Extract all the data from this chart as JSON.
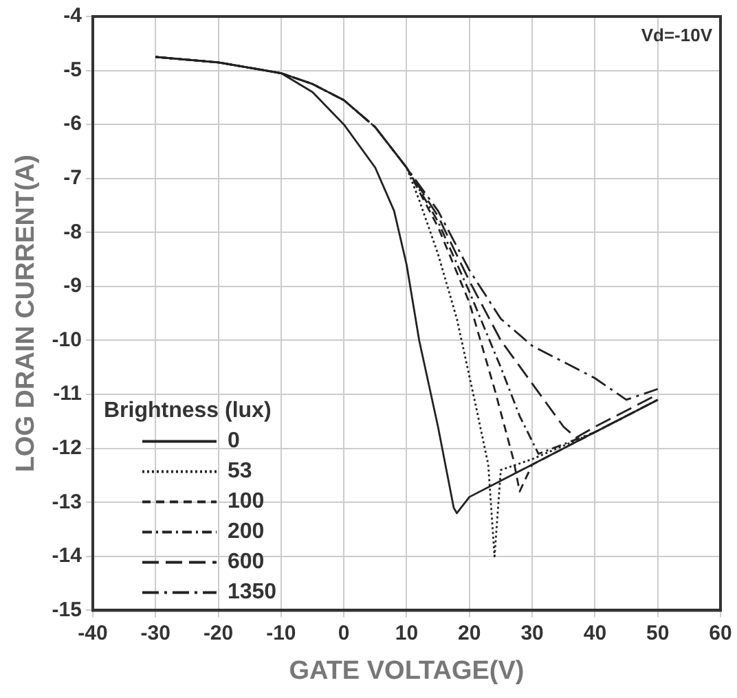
{
  "chart_data": {
    "type": "line",
    "xlabel": "GATE VOLTAGE(V)",
    "ylabel": "LOG DRAIN CURRENT(A)",
    "legend_title": "Brightness (lux)",
    "annotations": [
      "Vd=-10V"
    ],
    "xlim": [
      -40,
      60
    ],
    "xticks": [
      -40,
      -30,
      -20,
      -10,
      0,
      10,
      20,
      30,
      40,
      50,
      60
    ],
    "ylim": [
      -15,
      -4
    ],
    "yticks": [
      -15,
      -14,
      -13,
      -12,
      -11,
      -10,
      -9,
      -8,
      -7,
      -6,
      -5,
      -4
    ],
    "grid": true,
    "legend": "bottom left",
    "marker": "none",
    "series": [
      {
        "name": "0",
        "color": "#222222",
        "line_style": "solid",
        "x": [
          -30,
          -20,
          -10,
          -5,
          0,
          5,
          8,
          10,
          12,
          15,
          17.5,
          18,
          20,
          30,
          40,
          50
        ],
        "values": [
          -4.75,
          -4.85,
          -5.05,
          -5.4,
          -6.0,
          -6.8,
          -7.6,
          -8.6,
          -10,
          -11.6,
          -13.1,
          -13.2,
          -12.9,
          -12.3,
          -11.7,
          -11.1
        ]
      },
      {
        "name": "53",
        "color": "#222222",
        "line_style": "dotted",
        "x": [
          -30,
          -20,
          -10,
          -5,
          0,
          5,
          10,
          12,
          15,
          18,
          21,
          23,
          24,
          25,
          30,
          40,
          50
        ],
        "values": [
          -4.75,
          -4.85,
          -5.05,
          -5.25,
          -5.55,
          -6.05,
          -6.8,
          -7.4,
          -8.4,
          -9.6,
          -11.2,
          -12.3,
          -14,
          -12.4,
          -12.2,
          -11.7,
          -11.1
        ]
      },
      {
        "name": "100",
        "color": "#222222",
        "line_style": "dashed",
        "x": [
          -30,
          -20,
          -10,
          -5,
          0,
          5,
          10,
          15,
          20,
          24,
          27,
          28,
          30,
          40,
          50
        ],
        "values": [
          -4.75,
          -4.85,
          -5.05,
          -5.25,
          -5.55,
          -6.05,
          -6.8,
          -7.9,
          -9.3,
          -10.9,
          -12.2,
          -12.8,
          -12.3,
          -11.7,
          -11.1
        ]
      },
      {
        "name": "200",
        "color": "#222222",
        "line_style": "dashdot",
        "x": [
          -30,
          -20,
          -10,
          -5,
          0,
          5,
          10,
          15,
          20,
          25,
          28,
          31,
          40,
          50
        ],
        "values": [
          -4.75,
          -4.85,
          -5.05,
          -5.25,
          -5.55,
          -6.05,
          -6.8,
          -7.8,
          -9.1,
          -10.5,
          -11.4,
          -12.1,
          -11.7,
          -11.1
        ]
      },
      {
        "name": "600",
        "color": "#222222",
        "line_style": "longdash",
        "x": [
          -30,
          -20,
          -10,
          -5,
          0,
          5,
          10,
          15,
          20,
          25,
          30,
          35,
          37,
          40,
          50
        ],
        "values": [
          -4.75,
          -4.85,
          -5.05,
          -5.25,
          -5.55,
          -6.05,
          -6.8,
          -7.7,
          -8.9,
          -10.0,
          -10.8,
          -11.6,
          -11.8,
          -11.6,
          -11.0
        ]
      },
      {
        "name": "1350",
        "color": "#222222",
        "line_style": "longdashdot",
        "x": [
          -30,
          -20,
          -10,
          -5,
          0,
          5,
          10,
          15,
          20,
          25,
          30,
          35,
          40,
          45,
          50
        ],
        "values": [
          -4.75,
          -4.85,
          -5.05,
          -5.25,
          -5.55,
          -6.05,
          -6.8,
          -7.6,
          -8.7,
          -9.6,
          -10.1,
          -10.4,
          -10.7,
          -11.1,
          -10.9
        ]
      }
    ]
  }
}
